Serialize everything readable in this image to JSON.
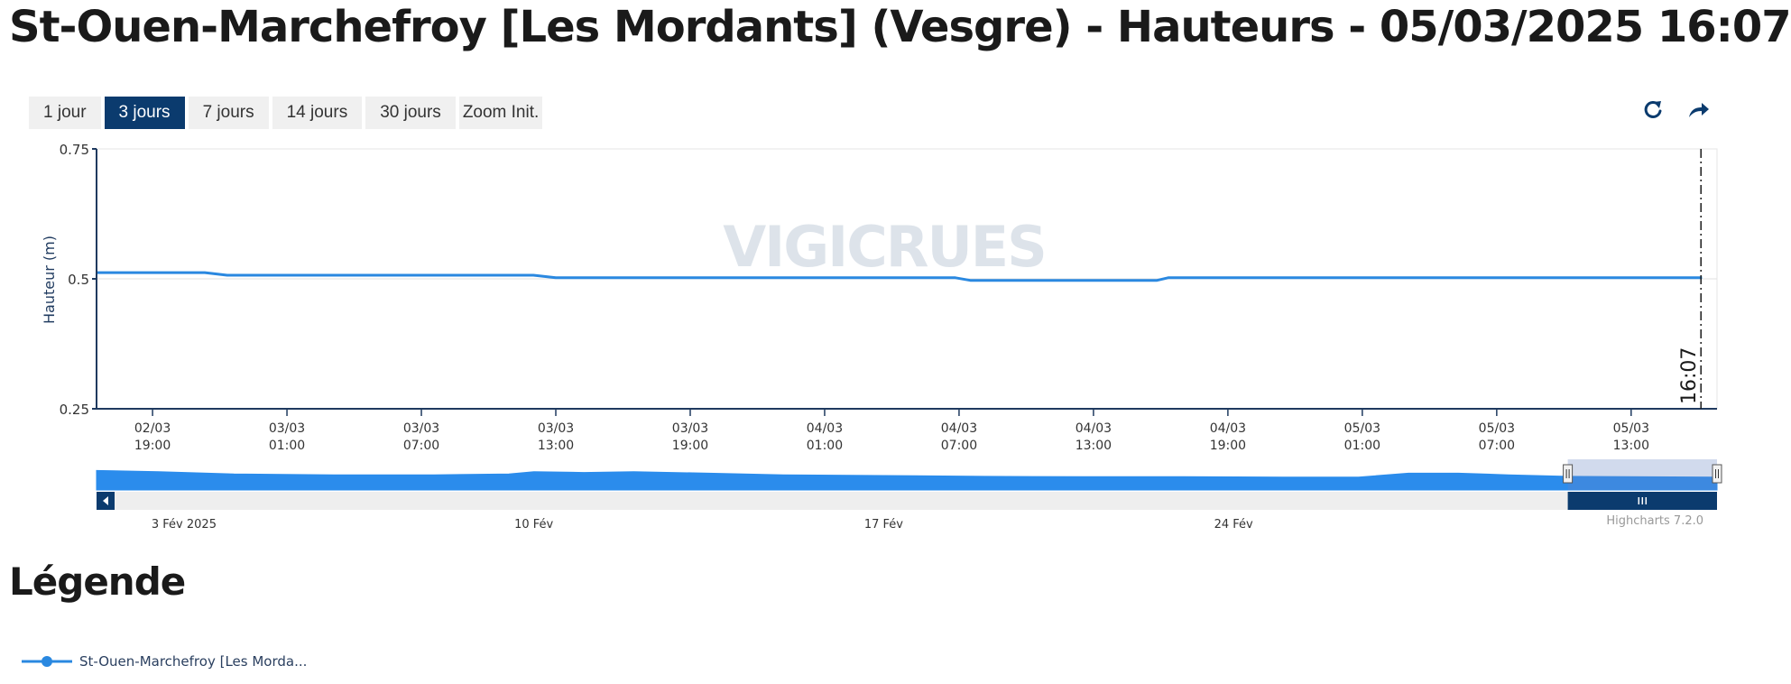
{
  "page": {
    "title": "St-Ouen-Marchefroy [Les Mordants] (Vesgre) - Hauteurs - 05/03/2025 16:07"
  },
  "range_selector": {
    "buttons": [
      "1 jour",
      "3 jours",
      "7 jours",
      "14 jours",
      "30 jours"
    ],
    "active_index": 1,
    "zoom_label": "Zoom Init."
  },
  "toolbar": {
    "refresh_icon": "refresh-icon",
    "share_icon": "share-arrow-icon"
  },
  "watermark": "VIGICRUES",
  "legend": {
    "heading": "Légende",
    "series_label": "St-Ouen-Marchefroy [Les Morda..."
  },
  "credits": "Highcharts 7.2.0",
  "colors": {
    "series": "#2a88e0",
    "navy": "#0b3b6e",
    "axis": "#1f3a5f",
    "navigator_fill": "#2b8cec"
  },
  "chart_data": {
    "type": "line",
    "ylabel": "Hauteur (m)",
    "ylim": [
      0.25,
      0.75
    ],
    "yticks": [
      0.25,
      0.5,
      0.75
    ],
    "ytick_labels": [
      "0.25",
      "0.5",
      "0.75"
    ],
    "xlim": [
      "2025-03-02T16:30",
      "2025-03-05T16:50"
    ],
    "xticks": [
      {
        "t": "2025-03-02T19:00",
        "date": "02/03",
        "time": "19:00"
      },
      {
        "t": "2025-03-03T01:00",
        "date": "03/03",
        "time": "01:00"
      },
      {
        "t": "2025-03-03T07:00",
        "date": "03/03",
        "time": "07:00"
      },
      {
        "t": "2025-03-03T13:00",
        "date": "03/03",
        "time": "13:00"
      },
      {
        "t": "2025-03-03T19:00",
        "date": "03/03",
        "time": "19:00"
      },
      {
        "t": "2025-03-04T01:00",
        "date": "04/03",
        "time": "01:00"
      },
      {
        "t": "2025-03-04T07:00",
        "date": "04/03",
        "time": "07:00"
      },
      {
        "t": "2025-03-04T13:00",
        "date": "04/03",
        "time": "13:00"
      },
      {
        "t": "2025-03-04T19:00",
        "date": "04/03",
        "time": "19:00"
      },
      {
        "t": "2025-03-05T01:00",
        "date": "05/03",
        "time": "01:00"
      },
      {
        "t": "2025-03-05T07:00",
        "date": "05/03",
        "time": "07:00"
      },
      {
        "t": "2025-03-05T13:00",
        "date": "05/03",
        "time": "13:00"
      }
    ],
    "current_time": {
      "t": "2025-03-05T16:07",
      "label": "16:07"
    },
    "series": [
      {
        "name": "St-Ouen-Marchefroy [Les Morda...",
        "x": [
          "2025-03-02T16:30",
          "2025-03-02T21:20",
          "2025-03-02T22:20",
          "2025-03-03T12:00",
          "2025-03-03T13:00",
          "2025-03-04T06:50",
          "2025-03-04T07:30",
          "2025-03-04T15:50",
          "2025-03-04T16:20",
          "2025-03-05T16:10"
        ],
        "values": [
          0.512,
          0.512,
          0.507,
          0.507,
          0.502,
          0.502,
          0.497,
          0.497,
          0.502,
          0.502
        ]
      }
    ],
    "navigator": {
      "type": "area",
      "xlim": [
        "2025-02-01T06:00",
        "2025-03-05T16:10"
      ],
      "x_labels": [
        {
          "t": "2025-02-03T00:00",
          "label": "3 Fév 2025"
        },
        {
          "t": "2025-02-10T00:00",
          "label": "10 Fév"
        },
        {
          "t": "2025-02-17T00:00",
          "label": "17 Fév"
        },
        {
          "t": "2025-02-24T00:00",
          "label": "24 Fév"
        }
      ],
      "selected_range": [
        "2025-03-02T16:30",
        "2025-03-05T16:10"
      ],
      "ylim": [
        0.25,
        0.75
      ],
      "x": [
        "2025-02-01T06:00",
        "2025-02-02T12:00",
        "2025-02-04T00:00",
        "2025-02-06T00:00",
        "2025-02-08T00:00",
        "2025-02-09T12:00",
        "2025-02-10T00:00",
        "2025-02-11T00:00",
        "2025-02-12T00:00",
        "2025-02-13T12:00",
        "2025-02-15T00:00",
        "2025-02-17T00:00",
        "2025-02-19T00:00",
        "2025-02-21T00:00",
        "2025-02-23T00:00",
        "2025-02-25T00:00",
        "2025-02-26T12:00",
        "2025-02-27T12:00",
        "2025-02-28T12:00",
        "2025-03-01T12:00",
        "2025-03-02T16:00",
        "2025-03-05T16:10"
      ],
      "values": [
        0.8,
        0.72,
        0.66,
        0.64,
        0.64,
        0.66,
        0.72,
        0.7,
        0.72,
        0.68,
        0.64,
        0.62,
        0.6,
        0.59,
        0.59,
        0.58,
        0.58,
        0.68,
        0.68,
        0.64,
        0.6,
        0.58
      ]
    }
  }
}
